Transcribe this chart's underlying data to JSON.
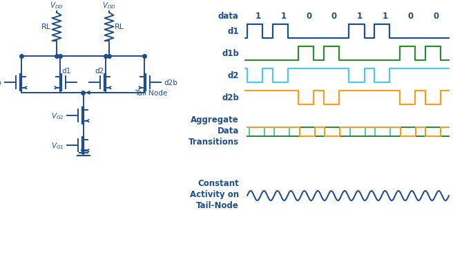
{
  "bg_color": "#ffffff",
  "circuit_color": "#1f4e8c",
  "dark_blue": "#1f4e8c",
  "waveform_colors": {
    "d1": "#1f4e8c",
    "d1b": "#2e8b2e",
    "d2": "#4dc8e8",
    "d2b": "#f5a020"
  },
  "aggregate_colors": [
    "#1f4e8c",
    "#4dc8e8",
    "#2e8b2e",
    "#f5a020"
  ],
  "data_bits": [
    1,
    1,
    0,
    0,
    1,
    1,
    0,
    0
  ],
  "fig_width": 6.56,
  "fig_height": 4.06,
  "dpi": 100
}
